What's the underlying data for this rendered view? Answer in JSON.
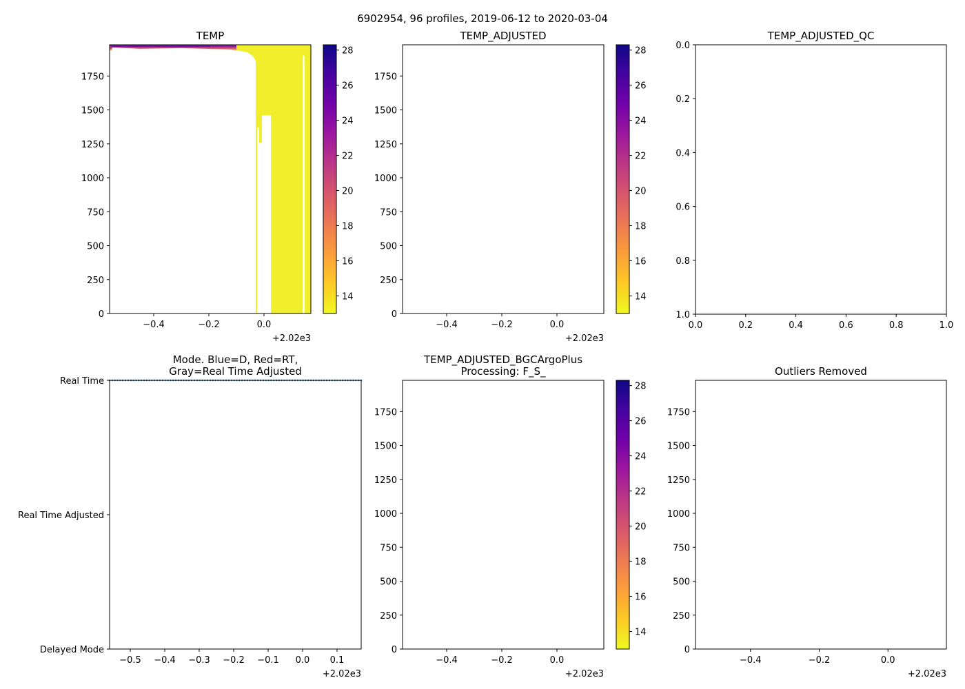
{
  "suptitle": "6902954, 96 profiles, 2019-06-12 to 2020-03-04",
  "colors": {
    "cmap": [
      "#f0f921",
      "#fdca26",
      "#fb9f3a",
      "#ed7953",
      "#d8576b",
      "#bd3786",
      "#9c179e",
      "#7201a8",
      "#46039f",
      "#0d0887"
    ],
    "raw_field": "#f1ef2c",
    "raw_field_deep": "#eeec26",
    "mid_band": "#f7dd2b",
    "surface_warm": "#6a1aa0",
    "mode_dots": "#1f77b4"
  },
  "chart_data": [
    {
      "id": "temp",
      "type": "heatmap",
      "title": "TEMP",
      "xlim": [
        -0.56,
        0.17
      ],
      "ylim": [
        1980,
        0
      ],
      "xticks": [
        -0.4,
        -0.2,
        0.0
      ],
      "xtick_labels": [
        "−0.4",
        "−0.2",
        "0.0"
      ],
      "yticks": [
        0,
        250,
        500,
        750,
        1000,
        1250,
        1500,
        1750
      ],
      "ytick_labels": [
        "0",
        "250",
        "500",
        "750",
        "1000",
        "1250",
        "1500",
        "1750"
      ],
      "offset_text": "+2.02e3",
      "has_data": true,
      "colorbar": {
        "range": [
          13.0,
          28.3
        ],
        "ticks": [
          14,
          16,
          18,
          20,
          22,
          24,
          26,
          28
        ]
      },
      "gap": {
        "x_range": [
          -0.025,
          0.025
        ],
        "bottom_depth": 1960,
        "top_depth_max": 1260
      }
    },
    {
      "id": "temp_adj",
      "type": "heatmap",
      "title": "TEMP_ADJUSTED",
      "xlim": [
        -0.56,
        0.17
      ],
      "ylim": [
        1980,
        0
      ],
      "xticks": [
        -0.4,
        -0.2,
        0.0
      ],
      "xtick_labels": [
        "−0.4",
        "−0.2",
        "0.0"
      ],
      "yticks": [
        0,
        250,
        500,
        750,
        1000,
        1250,
        1500,
        1750
      ],
      "ytick_labels": [
        "0",
        "250",
        "500",
        "750",
        "1000",
        "1250",
        "1500",
        "1750"
      ],
      "offset_text": "+2.02e3",
      "has_data": false,
      "colorbar": {
        "range": [
          13.0,
          28.3
        ],
        "ticks": [
          14,
          16,
          18,
          20,
          22,
          24,
          26,
          28
        ]
      }
    },
    {
      "id": "temp_adj_qc",
      "type": "heatmap",
      "title": "TEMP_ADJUSTED_QC",
      "xlim": [
        0,
        1
      ],
      "ylim": [
        0,
        1
      ],
      "xticks": [
        0.0,
        0.2,
        0.4,
        0.6,
        0.8,
        1.0
      ],
      "xtick_labels": [
        "0.0",
        "0.2",
        "0.4",
        "0.6",
        "0.8",
        "1.0"
      ],
      "yticks": [
        0.0,
        0.2,
        0.4,
        0.6,
        0.8,
        1.0
      ],
      "ytick_labels": [
        "0.0",
        "0.2",
        "0.4",
        "0.6",
        "0.8",
        "1.0"
      ],
      "offset_text": "",
      "has_data": false
    },
    {
      "id": "mode",
      "type": "scatter",
      "title": "Mode. Blue=D, Red=RT,\nGray=Real Time Adjusted",
      "xlim": [
        -0.56,
        0.17
      ],
      "ylim": [
        0,
        2
      ],
      "xticks": [
        -0.5,
        -0.4,
        -0.3,
        -0.2,
        -0.1,
        0.0,
        0.1
      ],
      "xtick_labels": [
        "−0.5",
        "−0.4",
        "−0.3",
        "−0.2",
        "−0.1",
        "0.0",
        "0.1"
      ],
      "yticks": [
        2,
        1,
        0
      ],
      "ytick_labels": [
        "Delayed Mode",
        "Real Time Adjusted",
        "Real Time"
      ],
      "offset_text": "+2.02e3",
      "has_data": true,
      "points": {
        "count": 96,
        "y": 0,
        "x_start": -0.56,
        "x_end": 0.17
      }
    },
    {
      "id": "temp_bgc",
      "type": "heatmap",
      "title": "TEMP_ADJUSTED_BGCArgoPlus\nProcessing: F_S_",
      "xlim": [
        -0.56,
        0.17
      ],
      "ylim": [
        1980,
        0
      ],
      "xticks": [
        -0.4,
        -0.2,
        0.0
      ],
      "xtick_labels": [
        "−0.4",
        "−0.2",
        "0.0"
      ],
      "yticks": [
        0,
        250,
        500,
        750,
        1000,
        1250,
        1500,
        1750
      ],
      "ytick_labels": [
        "0",
        "250",
        "500",
        "750",
        "1000",
        "1250",
        "1500",
        "1750"
      ],
      "offset_text": "+2.02e3",
      "has_data": false,
      "colorbar": {
        "range": [
          13.0,
          28.3
        ],
        "ticks": [
          14,
          16,
          18,
          20,
          22,
          24,
          26,
          28
        ]
      }
    },
    {
      "id": "outliers",
      "type": "heatmap",
      "title": "Outliers Removed",
      "xlim": [
        -0.56,
        0.17
      ],
      "ylim": [
        1980,
        0
      ],
      "xticks": [
        -0.4,
        -0.2,
        0.0
      ],
      "xtick_labels": [
        "−0.4",
        "−0.2",
        "0.0"
      ],
      "yticks": [
        0,
        250,
        500,
        750,
        1000,
        1250,
        1500,
        1750
      ],
      "ytick_labels": [
        "0",
        "250",
        "500",
        "750",
        "1000",
        "1250",
        "1500",
        "1750"
      ],
      "offset_text": "+2.02e3",
      "has_data": false
    }
  ]
}
